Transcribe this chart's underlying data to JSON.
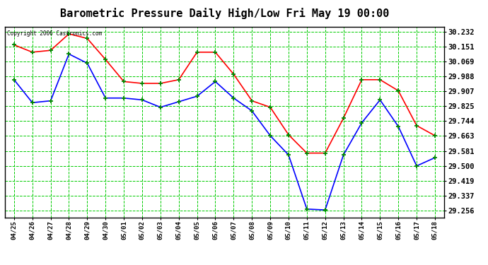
{
  "title": "Barometric Pressure Daily High/Low Fri May 19 00:00",
  "copyright": "Copyright 2006 Castronics.com",
  "background_color": "#ffffff",
  "plot_background": "#ffffff",
  "grid_color": "#00cc00",
  "x_labels": [
    "04/25",
    "04/26",
    "04/27",
    "04/28",
    "04/29",
    "04/30",
    "05/01",
    "05/02",
    "05/03",
    "05/04",
    "05/05",
    "05/06",
    "05/07",
    "05/08",
    "05/09",
    "05/10",
    "05/11",
    "05/12",
    "05/13",
    "05/14",
    "05/15",
    "05/16",
    "05/17",
    "05/18"
  ],
  "y_ticks": [
    29.256,
    29.337,
    29.419,
    29.5,
    29.581,
    29.663,
    29.744,
    29.825,
    29.907,
    29.988,
    30.069,
    30.151,
    30.232
  ],
  "high_values": [
    30.16,
    30.12,
    30.13,
    30.22,
    30.195,
    30.08,
    29.96,
    29.95,
    29.95,
    29.97,
    30.12,
    30.12,
    30.0,
    29.855,
    29.82,
    29.67,
    29.57,
    29.57,
    29.76,
    29.97,
    29.97,
    29.91,
    29.72,
    29.665
  ],
  "low_values": [
    29.97,
    29.845,
    29.855,
    30.11,
    30.06,
    29.87,
    29.87,
    29.86,
    29.82,
    29.85,
    29.88,
    29.96,
    29.87,
    29.8,
    29.665,
    29.56,
    29.265,
    29.26,
    29.56,
    29.735,
    29.86,
    29.715,
    29.5,
    29.545
  ],
  "high_color": "#ff0000",
  "low_color": "#0000ff",
  "marker_color": "#008800",
  "line_width": 1.2,
  "marker_size": 5,
  "ylim_min": 29.22,
  "ylim_max": 30.26,
  "title_fontsize": 11,
  "tick_fontsize": 7.5,
  "xtick_fontsize": 6.5
}
